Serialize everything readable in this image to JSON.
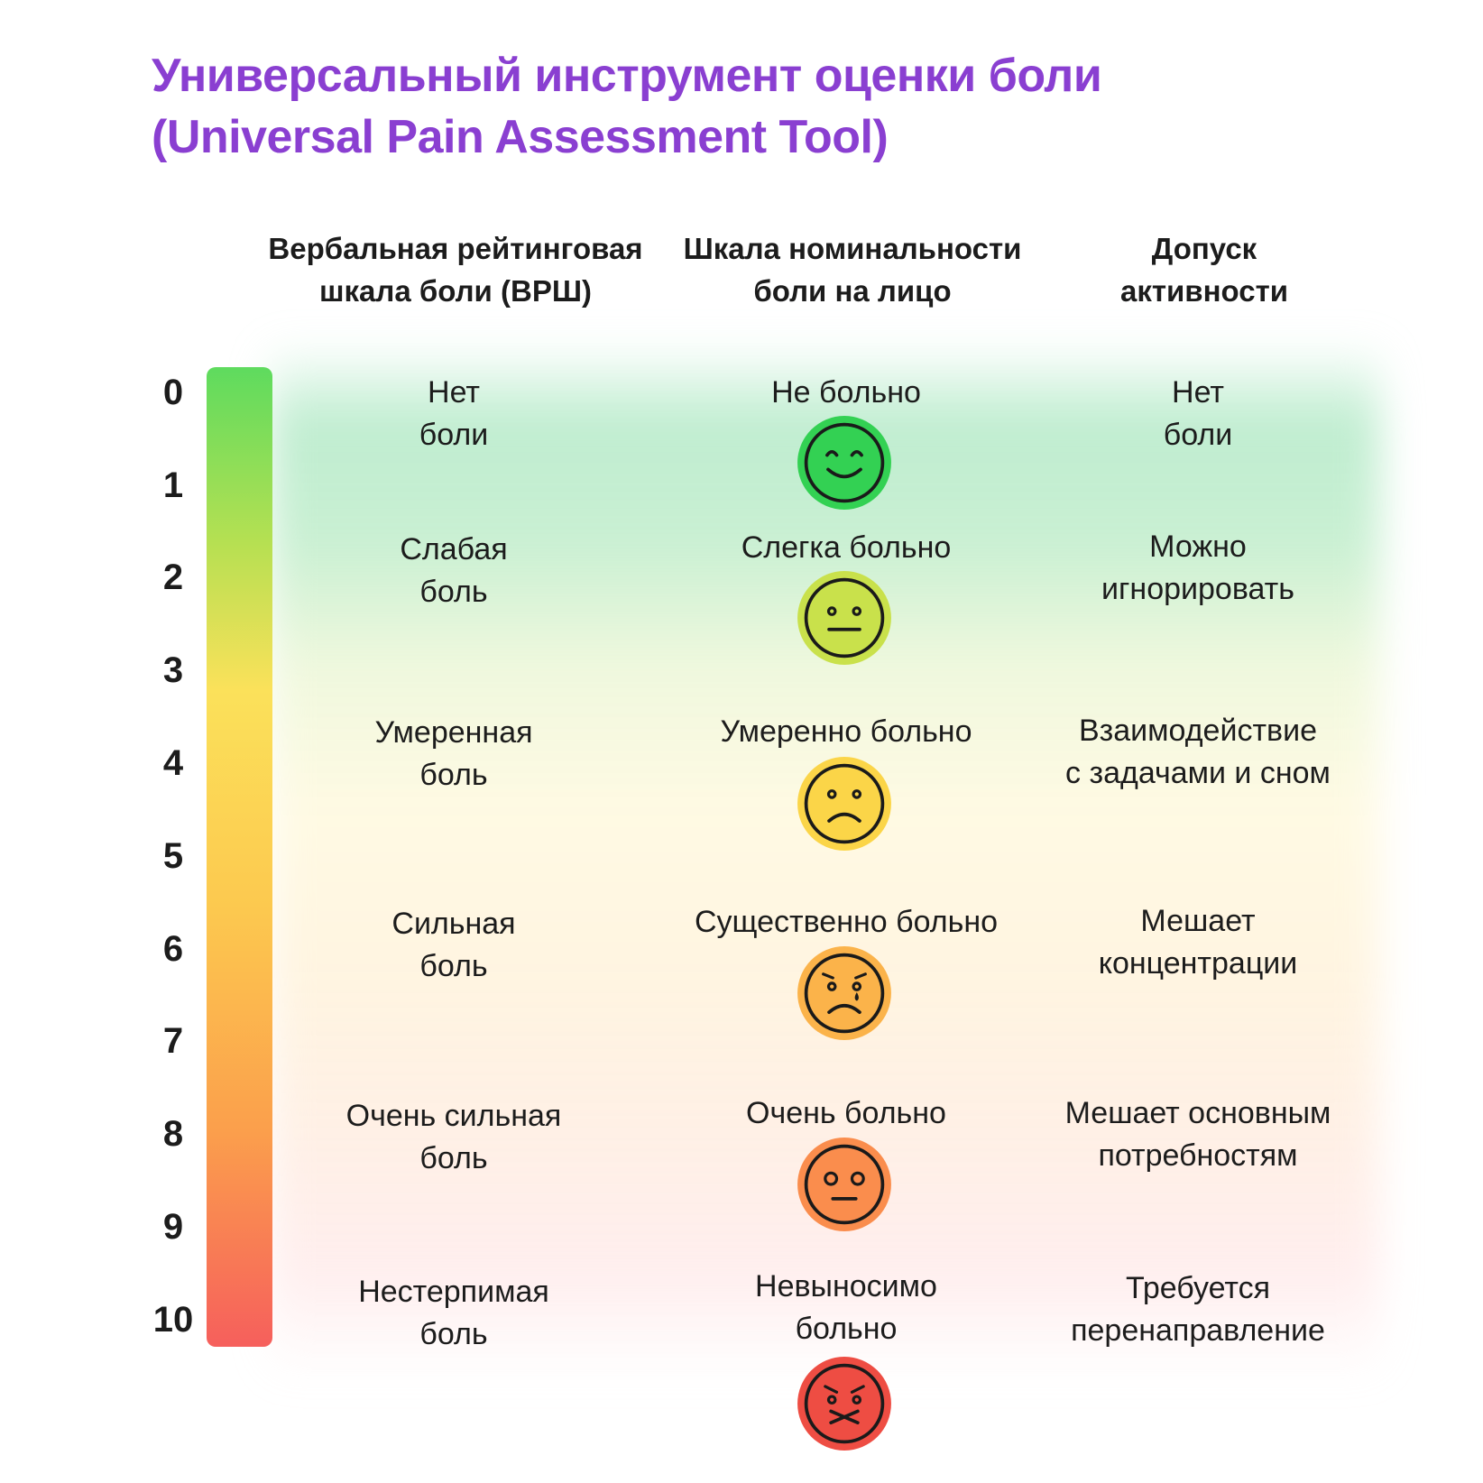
{
  "title_line1": "Универсальный инструмент оценки боли",
  "title_line2": "(Universal Pain Assessment Tool)",
  "columns": [
    {
      "line1": "Вербальная рейтинговая",
      "line2": "шкала боли (ВРШ)"
    },
    {
      "line1": "Шкала номинальности",
      "line2": "боли на лицо"
    },
    {
      "line1": "Допуск",
      "line2": "активности"
    }
  ],
  "scale": [
    "0",
    "1",
    "2",
    "3",
    "4",
    "5",
    "6",
    "7",
    "8",
    "9",
    "10"
  ],
  "scale_colors": [
    "#5edb5e",
    "#fbe15a",
    "#fb9f4c",
    "#f65f5c"
  ],
  "verbal": [
    {
      "line1": "Нет",
      "line2": "боли"
    },
    {
      "line1": "Слабая",
      "line2": "боль"
    },
    {
      "line1": "Умеренная",
      "line2": "боль"
    },
    {
      "line1": "Сильная",
      "line2": "боль"
    },
    {
      "line1": "Очень сильная",
      "line2": "боль"
    },
    {
      "line1": "Нестерпимая",
      "line2": "боль"
    }
  ],
  "faces": [
    {
      "line1": "Не больно",
      "line2": "",
      "icon": "happy-face-icon",
      "color": "#33d153"
    },
    {
      "line1": "Слегка больно",
      "line2": "",
      "icon": "neutral-face-icon",
      "color": "#c9e14b"
    },
    {
      "line1": "Умеренно больно",
      "line2": "",
      "icon": "sad-face-icon",
      "color": "#fbd548"
    },
    {
      "line1": "Существенно больно",
      "line2": "",
      "icon": "crying-face-icon",
      "color": "#fbb34a"
    },
    {
      "line1": "Очень больно",
      "line2": "",
      "icon": "distressed-face-icon",
      "color": "#fa8d4d"
    },
    {
      "line1": "Невыносимо",
      "line2": "больно",
      "icon": "agony-face-icon",
      "color": "#ee4d43"
    }
  ],
  "activity": [
    {
      "line1": "Нет",
      "line2": "боли"
    },
    {
      "line1": "Можно",
      "line2": "игнорировать"
    },
    {
      "line1": "Взаимодействие",
      "line2": "с задачами и сном"
    },
    {
      "line1": "Мешает",
      "line2": "концентрации"
    },
    {
      "line1": "Мешает основным",
      "line2": "потребностям"
    },
    {
      "line1": "Требуется",
      "line2": "перенаправление"
    }
  ]
}
